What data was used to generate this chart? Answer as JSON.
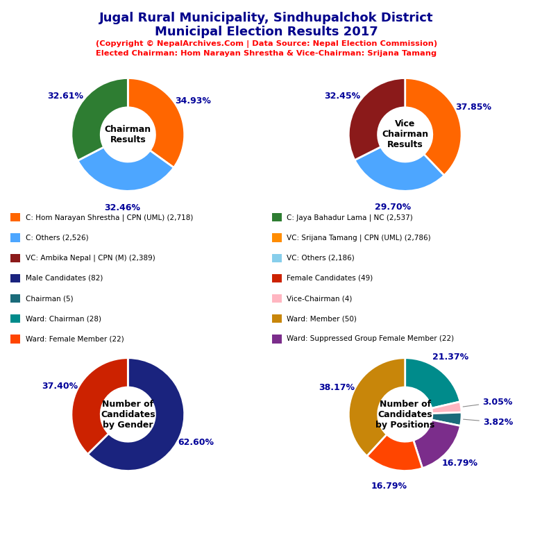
{
  "title_line1": "Jugal Rural Municipality, Sindhupalchok District",
  "title_line2": "Municipal Election Results 2017",
  "subtitle1": "(Copyright © NepalArchives.Com | Data Source: Nepal Election Commission)",
  "subtitle2": "Elected Chairman: Hom Narayan Shrestha & Vice-Chairman: Srijana Tamang",
  "chairman": {
    "label": "Chairman\nResults",
    "values": [
      34.93,
      32.46,
      32.61
    ],
    "colors": [
      "#FF6600",
      "#4DA6FF",
      "#2E7D32"
    ],
    "labels_pct": [
      "34.93%",
      "32.46%",
      "32.61%"
    ],
    "startangle": 90,
    "counterclock": false
  },
  "vice_chairman": {
    "label": "Vice\nChairman\nResults",
    "values": [
      37.85,
      29.7,
      32.45
    ],
    "colors": [
      "#FF6600",
      "#4DA6FF",
      "#8B1A1A"
    ],
    "labels_pct": [
      "37.85%",
      "29.70%",
      "32.45%"
    ],
    "startangle": 90,
    "counterclock": false
  },
  "gender": {
    "label": "Number of\nCandidates\nby Gender",
    "values": [
      62.6,
      37.4
    ],
    "colors": [
      "#1A237E",
      "#CC2200"
    ],
    "labels_pct": [
      "62.60%",
      "37.40%"
    ],
    "startangle": 90,
    "counterclock": false
  },
  "positions": {
    "label": "Number of\nCandidates\nby Positions",
    "values": [
      21.37,
      3.05,
      3.82,
      16.79,
      16.79,
      38.17
    ],
    "colors": [
      "#008B8B",
      "#FFB6C1",
      "#1A6B7A",
      "#7B2D8B",
      "#FF4500",
      "#C8860A"
    ],
    "labels_pct": [
      "21.37%",
      "3.05%",
      "3.82%",
      "16.79%",
      "16.79%",
      "38.17%"
    ],
    "startangle": 90,
    "counterclock": false
  },
  "legend_items_left": [
    {
      "label": "C: Hom Narayan Shrestha | CPN (UML) (2,718)",
      "color": "#FF6600"
    },
    {
      "label": "C: Others (2,526)",
      "color": "#4DA6FF"
    },
    {
      "label": "VC: Ambika Nepal | CPN (M) (2,389)",
      "color": "#8B1A1A"
    },
    {
      "label": "Male Candidates (82)",
      "color": "#1A237E"
    },
    {
      "label": "Chairman (5)",
      "color": "#1A6B7A"
    },
    {
      "label": "Ward: Chairman (28)",
      "color": "#008B8B"
    },
    {
      "label": "Ward: Female Member (22)",
      "color": "#FF4500"
    }
  ],
  "legend_items_right": [
    {
      "label": "C: Jaya Bahadur Lama | NC (2,537)",
      "color": "#2E7D32"
    },
    {
      "label": "VC: Srijana Tamang | CPN (UML) (2,786)",
      "color": "#FF8C00"
    },
    {
      "label": "VC: Others (2,186)",
      "color": "#87CEEB"
    },
    {
      "label": "Female Candidates (49)",
      "color": "#CC2200"
    },
    {
      "label": "Vice-Chairman (4)",
      "color": "#FFB6C1"
    },
    {
      "label": "Ward: Member (50)",
      "color": "#C8860A"
    },
    {
      "label": "Ward: Suppressed Group Female Member (22)",
      "color": "#7B2D8B"
    }
  ]
}
